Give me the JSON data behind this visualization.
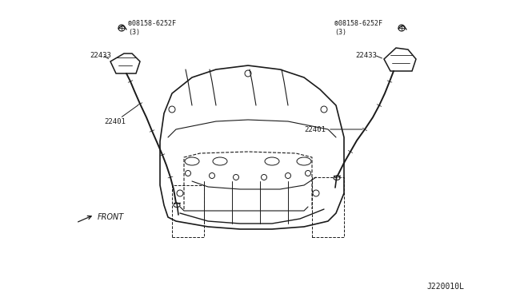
{
  "bg_color": "#ffffff",
  "line_color": "#1a1a1a",
  "text_color": "#1a1a1a",
  "part_number_bolt_left": "®08158-6252F\n(3)",
  "part_number_bolt_right": "®08158-6252F\n(3)",
  "label_22433_left": "22433",
  "label_22433_right": "22433",
  "label_22401_left": "22401",
  "label_22401_right": "22401",
  "front_label": "FRONT",
  "diagram_code": "J220010L",
  "figsize": [
    6.4,
    3.72
  ],
  "dpi": 100
}
